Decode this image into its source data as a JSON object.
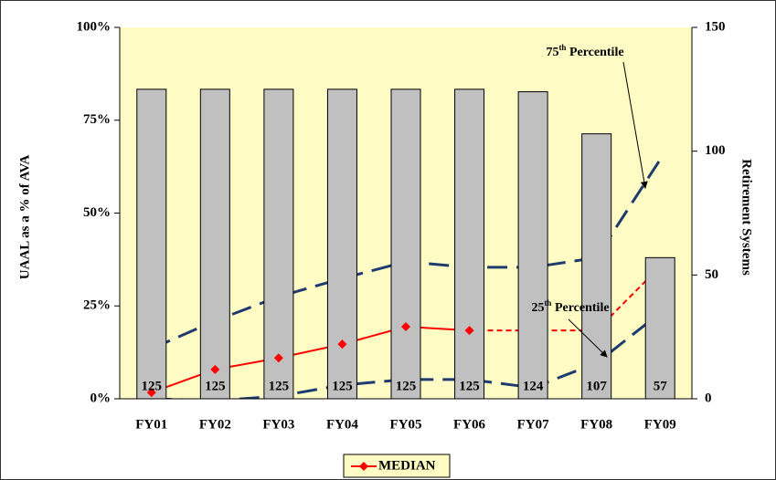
{
  "chart_data": {
    "type": "bar",
    "categories": [
      "FY01",
      "FY02",
      "FY03",
      "FY04",
      "FY05",
      "FY06",
      "FY07",
      "FY08",
      "FY09"
    ],
    "bars": {
      "axis": "y2",
      "color": "#c0c0c0",
      "values": [
        125,
        125,
        125,
        125,
        125,
        125,
        124,
        107,
        57
      ]
    },
    "series": [
      {
        "name": "MEDIAN",
        "color": "#ff0000",
        "dash_from": 5,
        "values": [
          1.7,
          7.9,
          11,
          14.7,
          19.4,
          18.4,
          18.4,
          18.4,
          35.6
        ]
      }
    ],
    "percentile_lines": [
      {
        "color": "#1f3a6e",
        "values": [
          13.5,
          21,
          27.5,
          32.4,
          36.9,
          35.4,
          35.4,
          38,
          64.4
        ]
      },
      {
        "color": "#1f3a6e",
        "values": [
          0,
          -0.5,
          0.7,
          3.7,
          5.2,
          5.2,
          3,
          9.6,
          23.1
        ]
      }
    ],
    "annotations": [
      {
        "number": "75",
        "sup": "th",
        "rest": " Percentile"
      },
      {
        "number": "25",
        "sup": "th",
        "rest": " Percentile"
      }
    ],
    "ylabel": "UAAL as a % of AVA",
    "y2label": "Retirement Systems",
    "ylim": [
      0,
      100
    ],
    "yticks": [
      {
        "value": 0,
        "label": "0%"
      },
      {
        "value": 25,
        "label": "25%"
      },
      {
        "value": 50,
        "label": "50%"
      },
      {
        "value": 75,
        "label": "75%"
      },
      {
        "value": 100,
        "label": "100%"
      }
    ],
    "y2lim": [
      0,
      150
    ],
    "y2ticks": [
      0,
      50,
      100,
      150
    ],
    "plot_background": "#fefcc4",
    "legend": "bottom"
  }
}
